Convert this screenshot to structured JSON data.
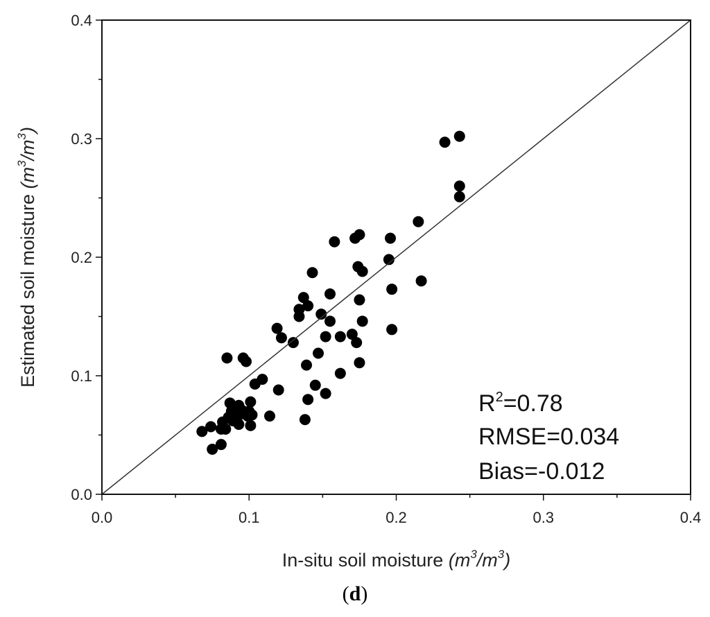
{
  "chart_data": {
    "type": "scatter",
    "title": "",
    "xlabel": "In-situ soil moisture",
    "xlabel_unit": [
      "m",
      "3",
      "/m",
      "3"
    ],
    "ylabel": "Estimated soil moisture",
    "ylabel_unit": [
      "m",
      "3",
      "/m",
      "3"
    ],
    "xlim": [
      0.0,
      0.4
    ],
    "ylim": [
      0.0,
      0.4
    ],
    "xticks": [
      "0.0",
      "0.1",
      "0.2",
      "0.3",
      "0.4"
    ],
    "yticks": [
      "0.0",
      "0.1",
      "0.2",
      "0.3",
      "0.4"
    ],
    "grid": false,
    "reference_line": "1:1",
    "annotations": {
      "r2_prefix": "R",
      "r2_sup": "2",
      "r2_value": "=0.78",
      "rmse": "RMSE=0.034",
      "bias": "Bias=-0.012"
    },
    "panel_label": "(d)",
    "points": [
      [
        0.068,
        0.053
      ],
      [
        0.074,
        0.057
      ],
      [
        0.075,
        0.038
      ],
      [
        0.081,
        0.055
      ],
      [
        0.081,
        0.042
      ],
      [
        0.082,
        0.061
      ],
      [
        0.084,
        0.055
      ],
      [
        0.085,
        0.115
      ],
      [
        0.086,
        0.065
      ],
      [
        0.087,
        0.077
      ],
      [
        0.088,
        0.07
      ],
      [
        0.089,
        0.062
      ],
      [
        0.09,
        0.067
      ],
      [
        0.091,
        0.072
      ],
      [
        0.092,
        0.065
      ],
      [
        0.093,
        0.059
      ],
      [
        0.093,
        0.075
      ],
      [
        0.094,
        0.069
      ],
      [
        0.095,
        0.071
      ],
      [
        0.096,
        0.115
      ],
      [
        0.098,
        0.112
      ],
      [
        0.099,
        0.066
      ],
      [
        0.1,
        0.07
      ],
      [
        0.101,
        0.078
      ],
      [
        0.101,
        0.058
      ],
      [
        0.102,
        0.067
      ],
      [
        0.104,
        0.093
      ],
      [
        0.109,
        0.097
      ],
      [
        0.114,
        0.066
      ],
      [
        0.119,
        0.14
      ],
      [
        0.12,
        0.088
      ],
      [
        0.122,
        0.132
      ],
      [
        0.13,
        0.128
      ],
      [
        0.134,
        0.156
      ],
      [
        0.134,
        0.15
      ],
      [
        0.137,
        0.166
      ],
      [
        0.138,
        0.063
      ],
      [
        0.139,
        0.109
      ],
      [
        0.14,
        0.159
      ],
      [
        0.14,
        0.08
      ],
      [
        0.143,
        0.187
      ],
      [
        0.145,
        0.092
      ],
      [
        0.147,
        0.119
      ],
      [
        0.149,
        0.152
      ],
      [
        0.152,
        0.133
      ],
      [
        0.152,
        0.085
      ],
      [
        0.155,
        0.169
      ],
      [
        0.155,
        0.146
      ],
      [
        0.158,
        0.213
      ],
      [
        0.162,
        0.133
      ],
      [
        0.162,
        0.102
      ],
      [
        0.17,
        0.135
      ],
      [
        0.172,
        0.216
      ],
      [
        0.173,
        0.128
      ],
      [
        0.174,
        0.192
      ],
      [
        0.175,
        0.219
      ],
      [
        0.175,
        0.164
      ],
      [
        0.175,
        0.111
      ],
      [
        0.177,
        0.188
      ],
      [
        0.177,
        0.146
      ],
      [
        0.195,
        0.198
      ],
      [
        0.196,
        0.216
      ],
      [
        0.197,
        0.173
      ],
      [
        0.197,
        0.139
      ],
      [
        0.215,
        0.23
      ],
      [
        0.217,
        0.18
      ],
      [
        0.233,
        0.297
      ],
      [
        0.243,
        0.302
      ],
      [
        0.243,
        0.26
      ],
      [
        0.243,
        0.251
      ]
    ]
  }
}
